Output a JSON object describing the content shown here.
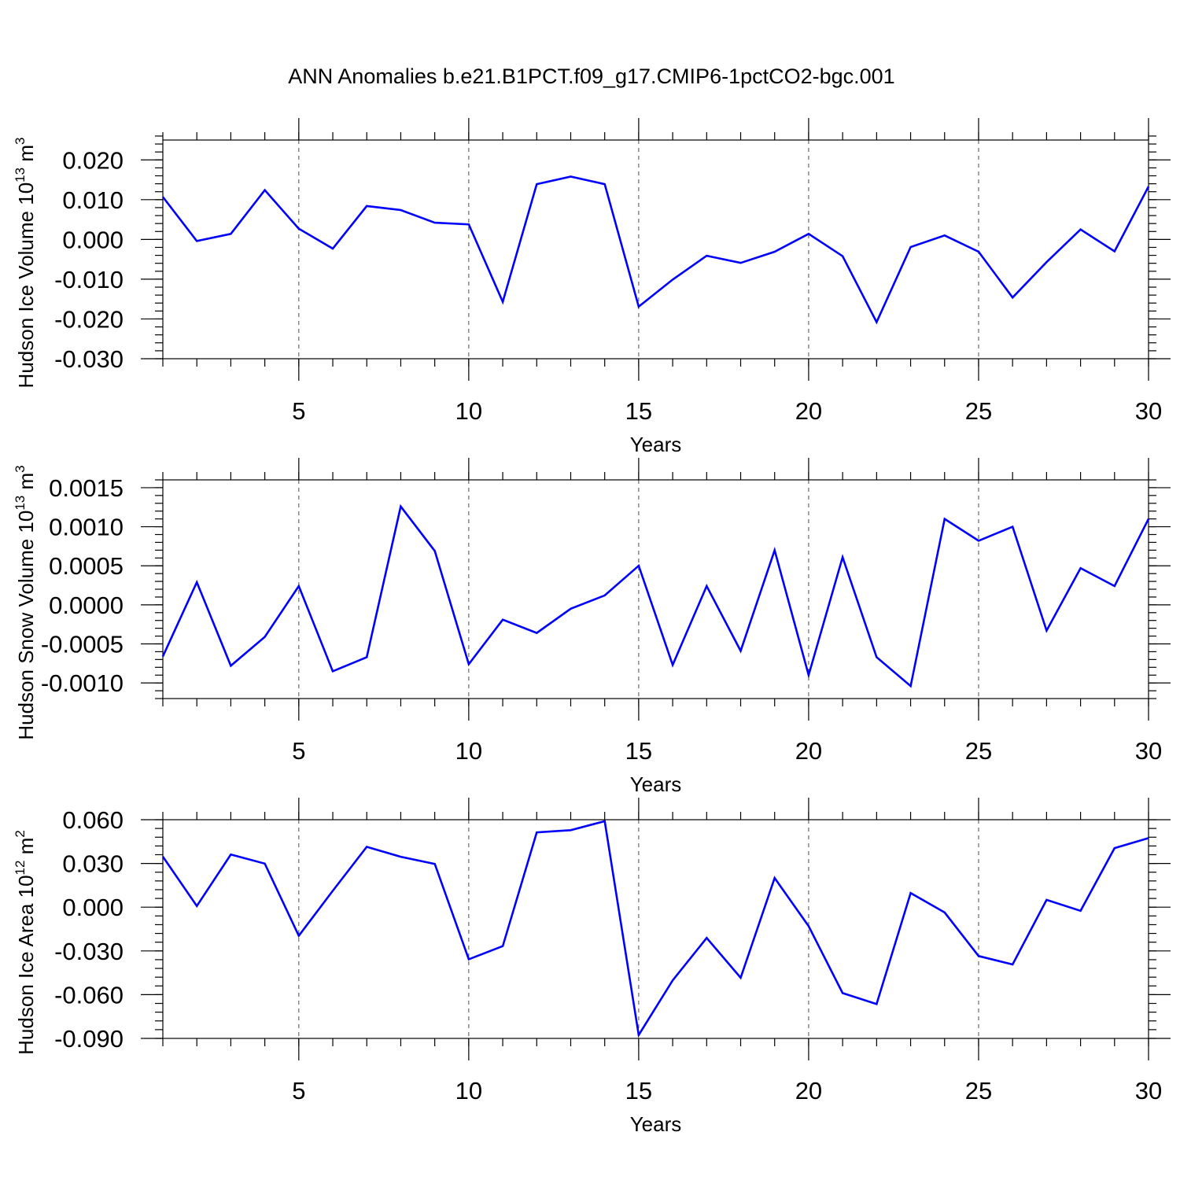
{
  "title": "ANN Anomalies b.e21.B1PCT.f09_g17.CMIP6-1pctCO2-bgc.001",
  "series_color": "#0000ff",
  "chart_data": [
    {
      "type": "line",
      "ylabel_main": "Hudson Ice Volume 10",
      "ylabel_exp": "13",
      "ylabel_unit": " m",
      "ylabel_unit_exp": "3",
      "xlabel": "Years",
      "xlim": [
        1,
        30
      ],
      "ylim": [
        -0.03,
        0.025
      ],
      "yticks": [
        -0.03,
        -0.02,
        -0.01,
        0.0,
        0.01,
        0.02
      ],
      "ytick_labels": [
        "-0.030",
        "-0.020",
        "-0.010",
        "0.000",
        "0.010",
        "0.020"
      ],
      "yminor_step": 0.002,
      "xticks": [
        5,
        10,
        15,
        20,
        25,
        30
      ],
      "xtick_labels": [
        "5",
        "10",
        "15",
        "20",
        "25",
        "30"
      ],
      "grid_x": [
        5,
        10,
        15,
        20,
        25
      ],
      "x": [
        1,
        2,
        3,
        4,
        5,
        6,
        7,
        8,
        9,
        10,
        11,
        12,
        13,
        14,
        15,
        16,
        17,
        18,
        19,
        20,
        21,
        22,
        23,
        24,
        25,
        26,
        27,
        28,
        29,
        30
      ],
      "values": [
        0.0107,
        -0.0004,
        0.0014,
        0.0124,
        0.0027,
        -0.0023,
        0.0084,
        0.0074,
        0.0042,
        0.0038,
        -0.0157,
        0.0139,
        0.0158,
        0.0139,
        -0.0169,
        -0.0101,
        -0.0041,
        -0.0059,
        -0.0031,
        0.0014,
        -0.0042,
        -0.0208,
        -0.0019,
        0.001,
        -0.0031,
        -0.0146,
        -0.0057,
        0.0025,
        -0.003,
        0.0133
      ]
    },
    {
      "type": "line",
      "ylabel_main": "Hudson Snow Volume 10",
      "ylabel_exp": "13",
      "ylabel_unit": " m",
      "ylabel_unit_exp": "3",
      "xlabel": "Years",
      "xlim": [
        1,
        30
      ],
      "ylim": [
        -0.0012,
        0.0016
      ],
      "yticks": [
        -0.001,
        -0.0005,
        0.0,
        0.0005,
        0.001,
        0.0015
      ],
      "ytick_labels": [
        "-0.0010",
        "-0.0005",
        "0.0000",
        "0.0005",
        "0.0010",
        "0.0015"
      ],
      "yminor_step": 0.0001,
      "xticks": [
        5,
        10,
        15,
        20,
        25,
        30
      ],
      "xtick_labels": [
        "5",
        "10",
        "15",
        "20",
        "25",
        "30"
      ],
      "grid_x": [
        5,
        10,
        15,
        20,
        25
      ],
      "x": [
        1,
        2,
        3,
        4,
        5,
        6,
        7,
        8,
        9,
        10,
        11,
        12,
        13,
        14,
        15,
        16,
        17,
        18,
        19,
        20,
        21,
        22,
        23,
        24,
        25,
        26,
        27,
        28,
        29,
        30
      ],
      "values": [
        -0.00066,
        0.00029,
        -0.00078,
        -0.00041,
        0.00024,
        -0.00085,
        -0.00067,
        0.00126,
        0.00069,
        -0.00076,
        -0.00019,
        -0.00036,
        -5e-05,
        0.00012,
        0.0005,
        -0.00077,
        0.00024,
        -0.00059,
        0.0007,
        -0.0009,
        0.00061,
        -0.00067,
        -0.00104,
        0.0011,
        0.00082,
        0.001,
        -0.00033,
        0.00047,
        0.00024,
        0.0011
      ]
    },
    {
      "type": "line",
      "ylabel_main": "Hudson Ice Area 10",
      "ylabel_exp": "12",
      "ylabel_unit": " m",
      "ylabel_unit_exp": "2",
      "xlabel": "Years",
      "xlim": [
        1,
        30
      ],
      "ylim": [
        -0.09,
        0.06
      ],
      "yticks": [
        -0.09,
        -0.06,
        -0.03,
        0.0,
        0.03,
        0.06
      ],
      "ytick_labels": [
        "-0.090",
        "-0.060",
        "-0.030",
        "0.000",
        "0.030",
        "0.060"
      ],
      "yminor_step": 0.006,
      "xticks": [
        5,
        10,
        15,
        20,
        25,
        30
      ],
      "xtick_labels": [
        "5",
        "10",
        "15",
        "20",
        "25",
        "30"
      ],
      "grid_x": [
        5,
        10,
        15,
        20,
        25
      ],
      "x": [
        1,
        2,
        3,
        4,
        5,
        6,
        7,
        8,
        9,
        10,
        11,
        12,
        13,
        14,
        15,
        16,
        17,
        18,
        19,
        20,
        21,
        22,
        23,
        24,
        25,
        26,
        27,
        28,
        29,
        30
      ],
      "values": [
        0.0347,
        0.0008,
        0.0361,
        0.0299,
        -0.0196,
        0.0112,
        0.0414,
        0.0346,
        0.0297,
        -0.0357,
        -0.0267,
        0.0513,
        0.0528,
        0.059,
        -0.0877,
        -0.0502,
        -0.0211,
        -0.0484,
        0.02,
        -0.013,
        -0.0589,
        -0.0664,
        0.0097,
        -0.0036,
        -0.0335,
        -0.0393,
        0.005,
        -0.0025,
        0.0405,
        0.0474
      ]
    }
  ]
}
